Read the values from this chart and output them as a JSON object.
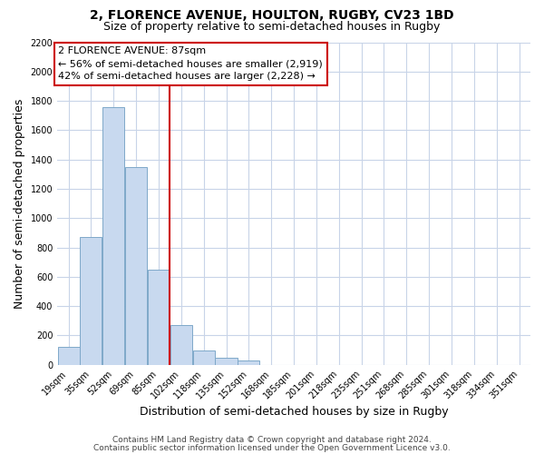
{
  "title": "2, FLORENCE AVENUE, HOULTON, RUGBY, CV23 1BD",
  "subtitle": "Size of property relative to semi-detached houses in Rugby",
  "xlabel": "Distribution of semi-detached houses by size in Rugby",
  "ylabel": "Number of semi-detached properties",
  "bar_labels": [
    "19sqm",
    "35sqm",
    "52sqm",
    "69sqm",
    "85sqm",
    "102sqm",
    "118sqm",
    "135sqm",
    "152sqm",
    "168sqm",
    "185sqm",
    "201sqm",
    "218sqm",
    "235sqm",
    "251sqm",
    "268sqm",
    "285sqm",
    "301sqm",
    "318sqm",
    "334sqm",
    "351sqm"
  ],
  "bar_values": [
    120,
    870,
    1760,
    1350,
    650,
    270,
    100,
    50,
    30,
    0,
    0,
    0,
    0,
    0,
    0,
    0,
    0,
    0,
    0,
    0,
    0
  ],
  "bar_color": "#c8d9ef",
  "bar_edge_color": "#7ea8c9",
  "highlight_line_color": "#cc0000",
  "highlight_line_index": 4,
  "annotation_line1": "2 FLORENCE AVENUE: 87sqm",
  "annotation_line2": "← 56% of semi-detached houses are smaller (2,919)",
  "annotation_line3": "42% of semi-detached houses are larger (2,228) →",
  "ylim": [
    0,
    2200
  ],
  "yticks": [
    0,
    200,
    400,
    600,
    800,
    1000,
    1200,
    1400,
    1600,
    1800,
    2000,
    2200
  ],
  "footer_line1": "Contains HM Land Registry data © Crown copyright and database right 2024.",
  "footer_line2": "Contains public sector information licensed under the Open Government Licence v3.0.",
  "background_color": "#ffffff",
  "grid_color": "#c8d4e8",
  "title_fontsize": 10,
  "subtitle_fontsize": 9,
  "axis_label_fontsize": 9,
  "tick_fontsize": 7,
  "annotation_fontsize": 8,
  "footer_fontsize": 6.5
}
